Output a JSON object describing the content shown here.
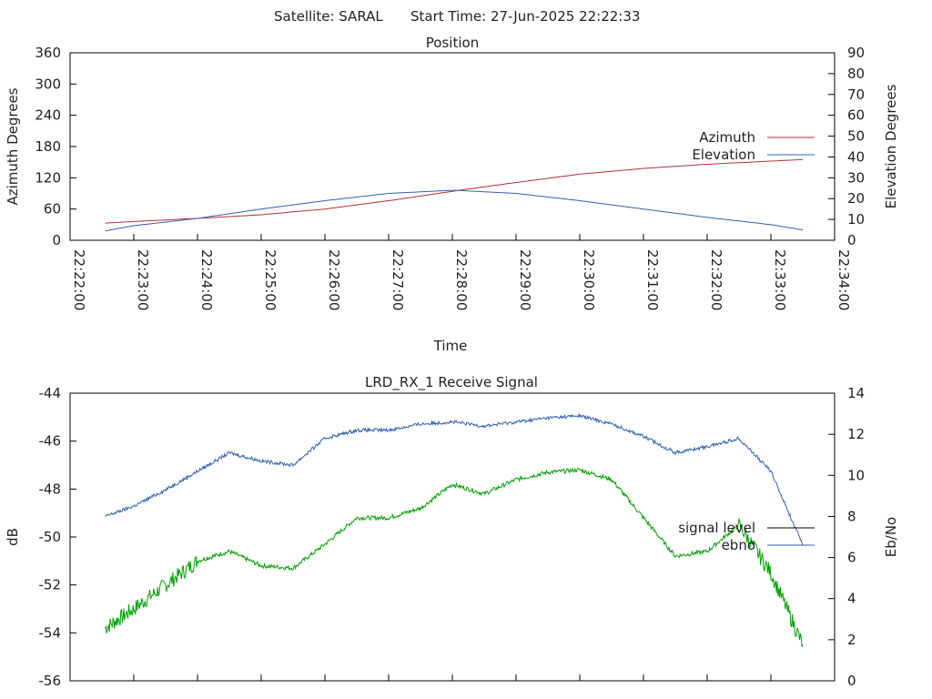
{
  "header": {
    "satellite": "Satellite: SARAL",
    "start_time": "Start Time: 27-Jun-2025 22:22:33"
  },
  "chart_data": [
    {
      "type": "line",
      "title": "Position",
      "xlabel": "Time",
      "ylabel": "Azimuth Degrees",
      "y2label": "Elevation Degrees",
      "x_ticks": [
        "22:22:00",
        "22:23:00",
        "22:24:00",
        "22:25:00",
        "22:26:00",
        "22:27:00",
        "22:28:00",
        "22:29:00",
        "22:30:00",
        "22:31:00",
        "22:32:00",
        "22:33:00",
        "22:34:00"
      ],
      "ylim": [
        0,
        360
      ],
      "y_ticks": [
        "0",
        "60",
        "120",
        "180",
        "240",
        "300",
        "360"
      ],
      "y2lim": [
        0,
        90
      ],
      "y2_ticks": [
        "0",
        "10",
        "20",
        "30",
        "40",
        "50",
        "60",
        "70",
        "80",
        "90"
      ],
      "legend_position": "right",
      "x": [
        "22:22:33",
        "22:23:00",
        "22:24:00",
        "22:25:00",
        "22:26:00",
        "22:27:00",
        "22:28:00",
        "22:28:10",
        "22:29:00",
        "22:30:00",
        "22:31:00",
        "22:32:00",
        "22:33:00",
        "22:33:30"
      ],
      "series": [
        {
          "name": "Azimuth",
          "axis": "left",
          "color": "#b03030",
          "values": [
            33,
            36,
            42,
            49,
            60,
            76,
            94,
            97,
            111,
            127,
            138,
            146,
            152,
            155
          ]
        },
        {
          "name": "Elevation",
          "axis": "right",
          "color": "#3060b0",
          "values": [
            4.5,
            7,
            10.5,
            15,
            19,
            22.5,
            24,
            23.8,
            22.5,
            19,
            15,
            11,
            7.5,
            5
          ]
        }
      ]
    },
    {
      "type": "line",
      "title": "LRD_RX_1 Receive Signal",
      "ylabel": "dB",
      "y2label": "Eb/No",
      "ylim": [
        -56,
        -44
      ],
      "y_ticks": [
        "-44",
        "-46",
        "-48",
        "-50",
        "-52",
        "-54",
        "-56"
      ],
      "y2lim": [
        0,
        14
      ],
      "y2_ticks": [
        "0",
        "2",
        "4",
        "6",
        "8",
        "10",
        "12",
        "14"
      ],
      "legend_position": "right",
      "x": [
        "22:22:33",
        "22:23:00",
        "22:23:30",
        "22:24:00",
        "22:24:30",
        "22:25:00",
        "22:25:30",
        "22:26:00",
        "22:26:30",
        "22:27:00",
        "22:27:30",
        "22:28:00",
        "22:28:30",
        "22:29:00",
        "22:29:30",
        "22:30:00",
        "22:30:30",
        "22:31:00",
        "22:31:30",
        "22:32:00",
        "22:32:30",
        "22:33:00",
        "22:33:30"
      ],
      "series": [
        {
          "name": "signal level",
          "axis": "left",
          "color": "#00a000",
          "values": [
            -53.8,
            -53,
            -52,
            -51,
            -50.6,
            -51.2,
            -51.3,
            -50.3,
            -49.2,
            -49.2,
            -48.8,
            -47.8,
            -48.2,
            -47.6,
            -47.3,
            -47.2,
            -47.6,
            -49.2,
            -50.8,
            -50.6,
            -49.5,
            -51.5,
            -54.5
          ]
        },
        {
          "name": "ebno",
          "axis": "right",
          "color": "#3060b0",
          "values": [
            8,
            8.5,
            9.3,
            10.2,
            11.1,
            10.7,
            10.5,
            11.8,
            12.2,
            12.2,
            12.5,
            12.6,
            12.4,
            12.6,
            12.8,
            12.9,
            12.5,
            11.9,
            11.1,
            11.4,
            11.8,
            10.2,
            6.6
          ]
        }
      ]
    }
  ]
}
